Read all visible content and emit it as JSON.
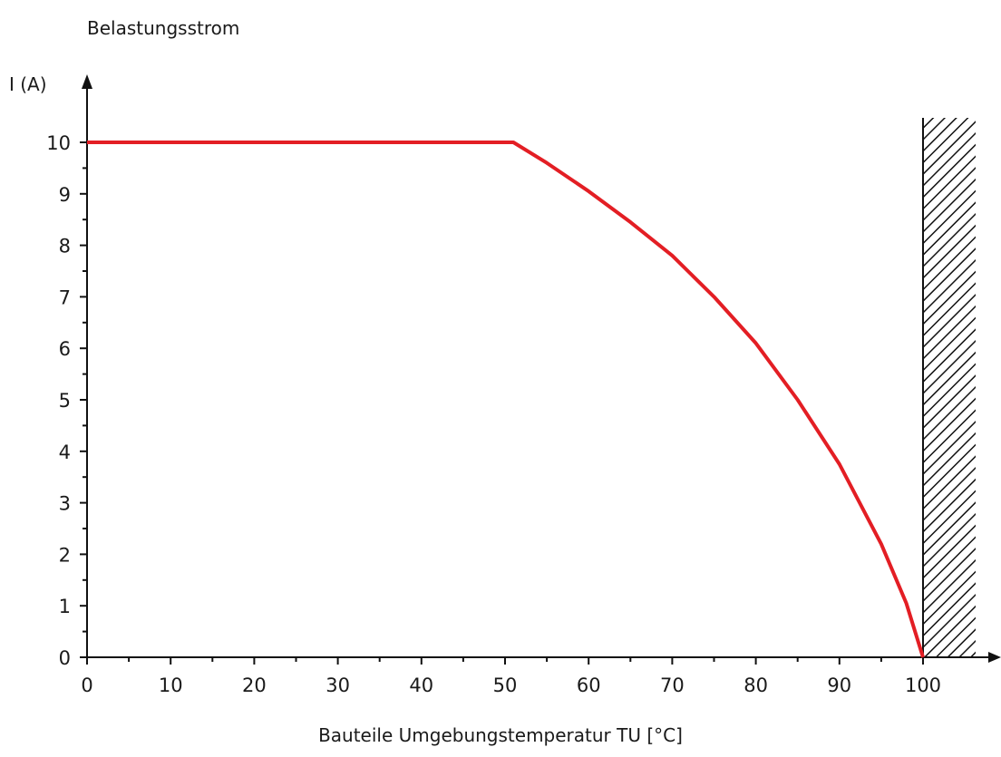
{
  "chart_data": {
    "type": "line",
    "title": "Belastungsstrom",
    "xlabel": "Bauteile Umgebungstemperatur TU [°C]",
    "ylabel": "I (A)",
    "xlim": [
      0,
      107
    ],
    "ylim": [
      0,
      11
    ],
    "x_ticks": [
      0,
      10,
      20,
      30,
      40,
      50,
      60,
      70,
      80,
      90,
      100
    ],
    "x_tick_labels": [
      "0",
      "10",
      "20",
      "30",
      "40",
      "50",
      "60",
      "70",
      "80",
      "90",
      "100"
    ],
    "y_ticks": [
      0,
      1,
      2,
      3,
      4,
      5,
      6,
      7,
      8,
      9,
      10
    ],
    "y_tick_labels": [
      "0",
      "1",
      "2",
      "3",
      "4",
      "5",
      "6",
      "7",
      "8",
      "9",
      "10"
    ],
    "grid": false,
    "legend": "none",
    "limit_temperature": 100,
    "series": [
      {
        "color": "#e31e24",
        "x": [
          0,
          51,
          55,
          60,
          65,
          70,
          75,
          80,
          85,
          90,
          95,
          98,
          100
        ],
        "y": [
          10,
          10,
          9.6,
          9.05,
          8.45,
          7.8,
          7.0,
          6.1,
          5.0,
          3.75,
          2.2,
          1.05,
          0
        ]
      }
    ]
  }
}
